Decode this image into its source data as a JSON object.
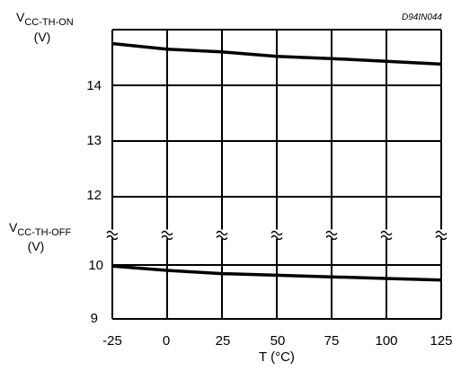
{
  "chart_data": {
    "type": "line",
    "code": "D94IN044",
    "x_ticks": [
      "-25",
      "0",
      "25",
      "50",
      "75",
      "100",
      "125"
    ],
    "y_ticks_upper": [
      "14",
      "13",
      "12"
    ],
    "y_ticks_lower": [
      "10",
      "9"
    ],
    "xlim": [
      -25,
      125
    ],
    "ylim_upper": [
      11.5,
      15
    ],
    "ylim_lower": [
      9,
      10.4
    ],
    "xlabel": "T  (°C)",
    "ylabel_on": {
      "main": "V",
      "sub": "CC-TH-ON",
      "unit": "(V)"
    },
    "ylabel_off": {
      "main": "V",
      "sub": "CC-TH-OFF",
      "unit": "(V)"
    },
    "series": [
      {
        "label": "on",
        "x": [
          -25,
          0,
          25,
          50,
          75,
          100,
          125
        ],
        "y": [
          14.75,
          14.65,
          14.6,
          14.52,
          14.48,
          14.43,
          14.38
        ]
      },
      {
        "label": "off",
        "x": [
          -25,
          0,
          25,
          50,
          75,
          100,
          125
        ],
        "y": [
          9.98,
          9.9,
          9.84,
          9.81,
          9.78,
          9.75,
          9.72
        ]
      }
    ],
    "grid": true
  }
}
